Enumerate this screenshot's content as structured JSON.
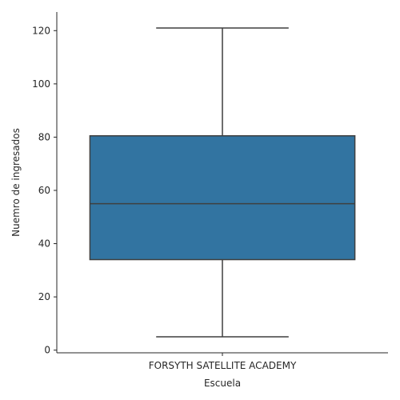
{
  "chart_data": {
    "type": "box",
    "xlabel": "Escuela",
    "ylabel": "Nuemro de ingresados",
    "ylim": [
      -1,
      127
    ],
    "yticks": [
      0,
      20,
      40,
      60,
      80,
      100,
      120
    ],
    "grid": false,
    "categories": [
      "FORSYTH SATELLITE ACADEMY"
    ],
    "boxes": [
      {
        "category": "FORSYTH SATELLITE ACADEMY",
        "min": 5,
        "q1": 34,
        "median": 55,
        "q3": 80.5,
        "max": 121
      }
    ],
    "colors": {
      "box_fill": "#3274a1",
      "line": "#3f3f3f",
      "axis": "#262626"
    }
  }
}
